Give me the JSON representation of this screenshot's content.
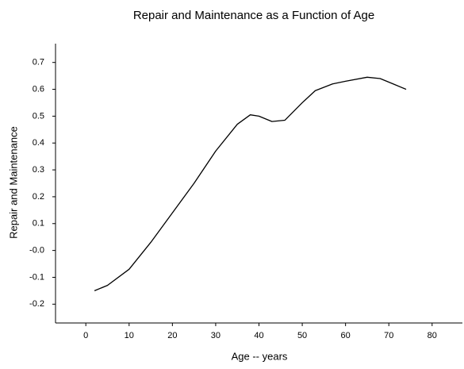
{
  "chart_data": {
    "type": "line",
    "title": "Repair and Maintenance as a Function of Age",
    "xlabel": "Age -- years",
    "ylabel": "Repair and Maintenance",
    "x": [
      2,
      5,
      10,
      15,
      20,
      25,
      30,
      35,
      38,
      40,
      43,
      46,
      50,
      53,
      57,
      60,
      65,
      68,
      71,
      74
    ],
    "series": [
      {
        "name": "Repair and Maintenance",
        "color": "#000000",
        "values": [
          -0.15,
          -0.13,
          -0.07,
          0.03,
          0.14,
          0.25,
          0.37,
          0.47,
          0.505,
          0.5,
          0.48,
          0.485,
          0.55,
          0.595,
          0.62,
          0.63,
          0.645,
          0.64,
          0.62,
          0.6
        ]
      }
    ],
    "xlim": [
      -7,
      87
    ],
    "xticks": [
      0,
      10,
      20,
      30,
      40,
      50,
      60,
      70,
      80
    ],
    "ylim": [
      -0.27,
      0.77
    ],
    "yticks": [
      -0.2,
      -0.1,
      {
        "value": 0,
        "label": "-0.0"
      },
      0.1,
      0.2,
      0.3,
      0.4,
      0.5,
      0.6,
      0.7
    ],
    "grid": false
  }
}
